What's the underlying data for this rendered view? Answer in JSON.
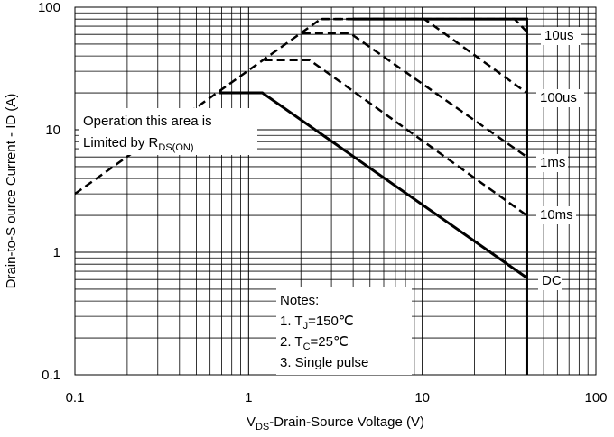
{
  "chart_data": {
    "type": "line",
    "y_label": "Drain-to-S ource Current - ID (A)",
    "x_label": {
      "main": "V",
      "sub": "DS",
      "rest": "-Drain-Source Voltage (V)"
    },
    "log_x": true,
    "log_y": true,
    "grid": true,
    "xlim": [
      0.1,
      100
    ],
    "ylim": [
      0.1,
      100
    ],
    "xticks": [
      0.1,
      1,
      10,
      100
    ],
    "yticks": [
      0.1,
      1,
      10,
      100
    ],
    "x_minor_ticks": [
      0.2,
      0.3,
      0.4,
      0.5,
      0.6,
      0.7,
      0.8,
      0.9,
      2,
      3,
      4,
      5,
      6,
      7,
      8,
      9,
      20,
      30,
      40,
      50,
      60,
      70,
      80,
      90
    ],
    "y_minor_ticks": [
      0.2,
      0.3,
      0.4,
      0.5,
      0.6,
      0.7,
      0.8,
      0.9,
      2,
      3,
      4,
      5,
      6,
      7,
      8,
      9,
      20,
      30,
      40,
      50,
      60,
      70,
      80,
      90
    ],
    "series": [
      {
        "name": "10us",
        "color": "#000000",
        "dashed": true,
        "x": [
          0.1,
          2.6,
          34,
          40
        ],
        "y": [
          3,
          80,
          80,
          63
        ]
      },
      {
        "name": "100us",
        "color": "#000000",
        "dashed": true,
        "x": [
          2.6,
          10.3,
          40
        ],
        "y": [
          80,
          80,
          20
        ]
      },
      {
        "name": "1ms",
        "color": "#000000",
        "dashed": true,
        "x": [
          2.04,
          3.86,
          40
        ],
        "y": [
          61,
          61,
          6
        ]
      },
      {
        "name": "10ms",
        "color": "#000000",
        "dashed": true,
        "x": [
          1.23,
          2.25,
          40
        ],
        "y": [
          37,
          37,
          2
        ]
      },
      {
        "name": "DC",
        "color": "#000000",
        "dashed": false,
        "x": [
          0.68,
          1.2,
          40
        ],
        "y": [
          20,
          20,
          0.62
        ]
      }
    ],
    "limit_line": {
      "color": "#000000",
      "x": [
        4,
        40,
        40
      ],
      "y": [
        80,
        80,
        0.1
      ]
    },
    "area_note": {
      "line1": "Operation this area is",
      "line2": "Limited  by R",
      "sub": "DS(ON)"
    },
    "notes": {
      "title": "Notes:",
      "n1": {
        "pre": "1. T",
        "sub": "J",
        "post": "=150℃"
      },
      "n2": {
        "pre": "2. T",
        "sub": "C",
        "post": "=25℃"
      },
      "n3": "3. Single pulse"
    }
  }
}
